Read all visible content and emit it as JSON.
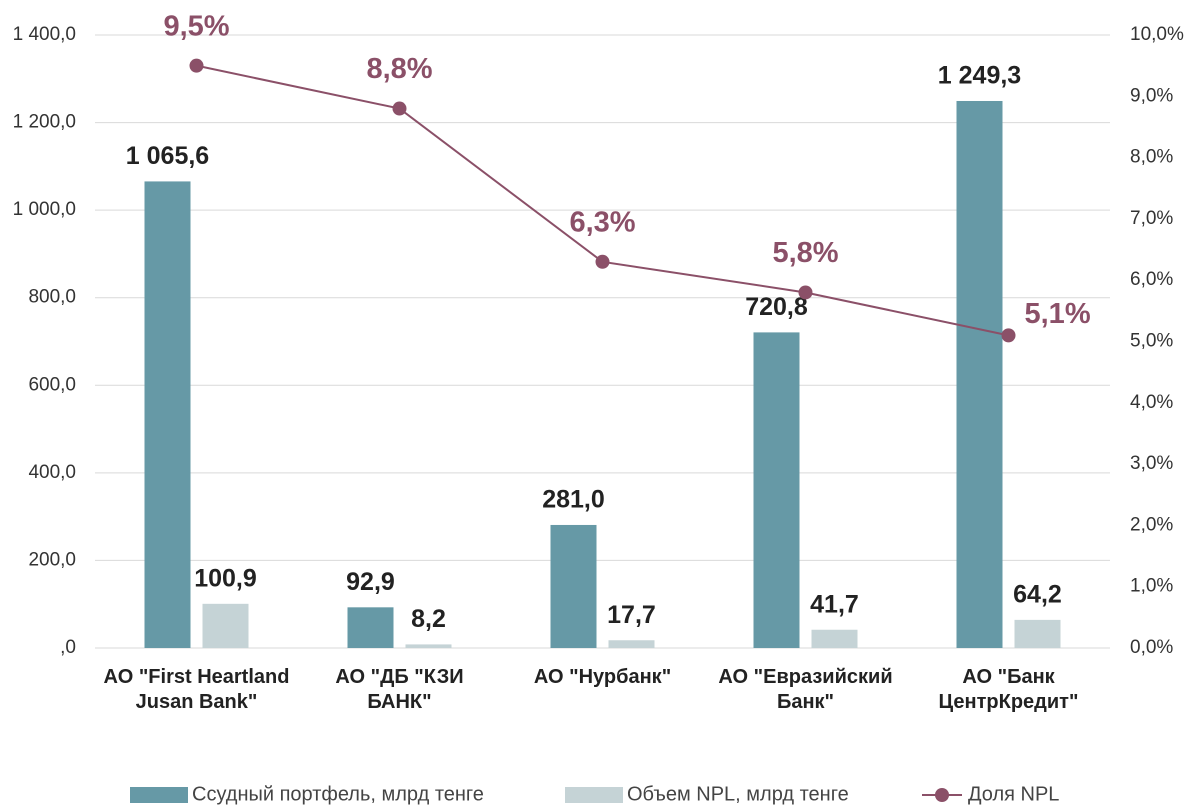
{
  "chart_data": {
    "type": "bar",
    "categories": [
      "АО \"First Heartland Jusan Bank\"",
      "АО \"ДБ \"КЗИ БАНК\"",
      "АО \"Нурбанк\"",
      "АО \"Евразийский Банк\"",
      "АО  \"Банк ЦентрКредит\""
    ],
    "series": [
      {
        "name": "Ссудный портфель, млрд тенге",
        "color": "#6699a6",
        "type": "bar",
        "values": [
          1065.6,
          92.9,
          281.0,
          720.8,
          1249.3
        ],
        "value_labels": [
          "1 065,6",
          "92,9",
          "281,0",
          "720,8",
          "1 249,3"
        ]
      },
      {
        "name": "Объем NPL, млрд тенге",
        "color": "#c5d3d6",
        "type": "bar",
        "values": [
          100.9,
          8.2,
          17.7,
          41.7,
          64.2
        ],
        "value_labels": [
          "100,9",
          "8,2",
          "17,7",
          "41,7",
          "64,2"
        ]
      },
      {
        "name": "Доля NPL",
        "color": "#8b5068",
        "type": "line",
        "axis": "y2",
        "values": [
          9.5,
          8.8,
          6.3,
          5.8,
          5.1
        ],
        "value_labels": [
          "9,5%",
          "8,8%",
          "6,3%",
          "5,8%",
          "5,1%"
        ]
      }
    ],
    "ylim": [
      0,
      1400
    ],
    "yticks": [
      {
        "value": 0,
        "label": ",0"
      },
      {
        "value": 200,
        "label": "200,0"
      },
      {
        "value": 400,
        "label": "400,0"
      },
      {
        "value": 600,
        "label": "600,0"
      },
      {
        "value": 800,
        "label": "800,0"
      },
      {
        "value": 1000,
        "label": "1 000,0"
      },
      {
        "value": 1200,
        "label": "1 200,0"
      },
      {
        "value": 1400,
        "label": "1 400,0"
      }
    ],
    "y2lim": [
      0,
      10
    ],
    "y2ticks": [
      {
        "value": 0,
        "label": "0,0%"
      },
      {
        "value": 1,
        "label": "1,0%"
      },
      {
        "value": 2,
        "label": "2,0%"
      },
      {
        "value": 3,
        "label": "3,0%"
      },
      {
        "value": 4,
        "label": "4,0%"
      },
      {
        "value": 5,
        "label": "5,0%"
      },
      {
        "value": 6,
        "label": "6,0%"
      },
      {
        "value": 7,
        "label": "7,0%"
      },
      {
        "value": 8,
        "label": "8,0%"
      },
      {
        "value": 9,
        "label": "9,0%"
      },
      {
        "value": 10,
        "label": "10,0%"
      }
    ],
    "grid": true
  }
}
